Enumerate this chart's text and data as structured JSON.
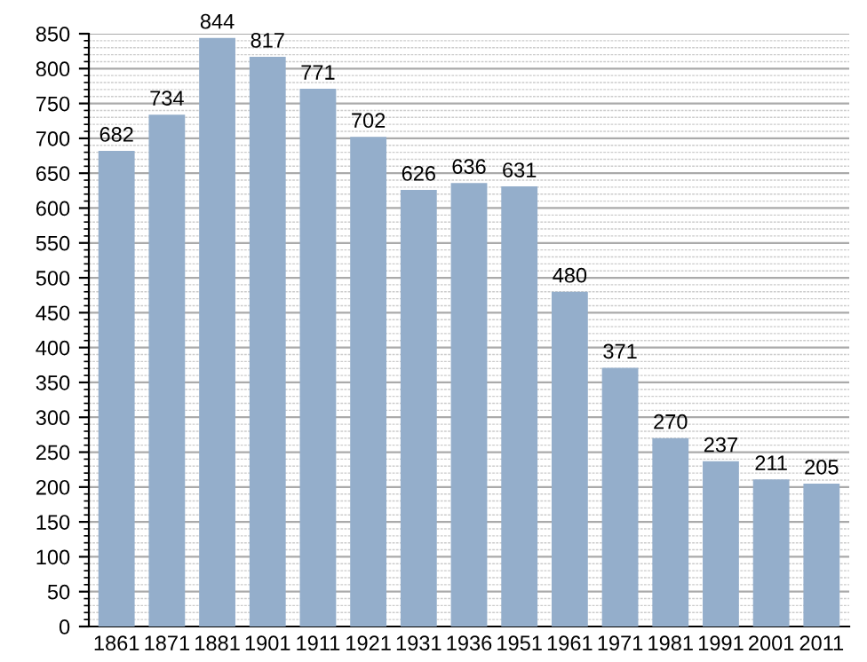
{
  "chart_data": {
    "type": "bar",
    "categories": [
      "1861",
      "1871",
      "1881",
      "1901",
      "1911",
      "1921",
      "1931",
      "1936",
      "1951",
      "1961",
      "1971",
      "1981",
      "1991",
      "2001",
      "2011"
    ],
    "values": [
      682,
      734,
      844,
      817,
      771,
      702,
      626,
      636,
      631,
      480,
      371,
      270,
      237,
      211,
      205
    ],
    "color": "#94aecb",
    "ylim": [
      0,
      850
    ],
    "yticks": [
      0,
      50,
      100,
      150,
      200,
      250,
      300,
      350,
      400,
      450,
      500,
      550,
      600,
      650,
      700,
      750,
      800,
      850
    ],
    "grid": "y",
    "data_labels": true
  }
}
